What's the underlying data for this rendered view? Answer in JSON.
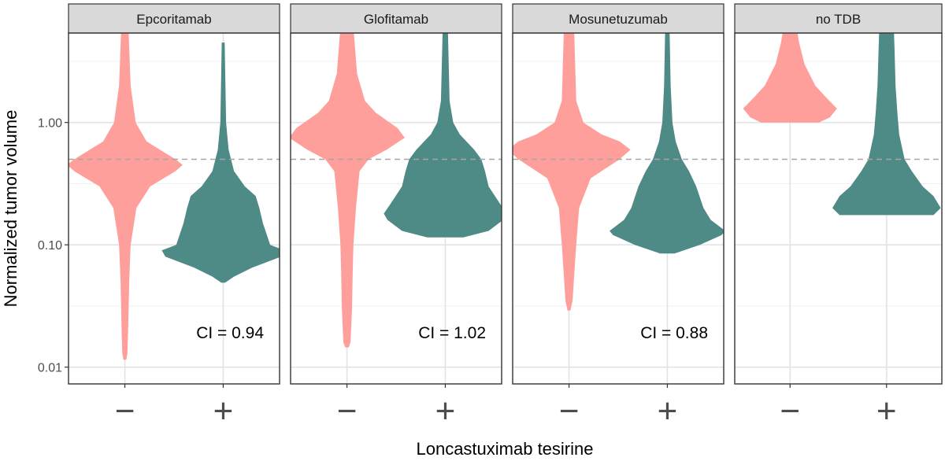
{
  "chart_data": {
    "type": "violin",
    "xlabel": "Loncastuximab tesirine",
    "ylabel": "Normalized tumor volume",
    "y_scale": "log10",
    "ylim": [
      0.0085,
      6.0
    ],
    "y_ticks": [
      {
        "value": 0.01,
        "label": "0.01"
      },
      {
        "value": 0.1,
        "label": "0.10"
      },
      {
        "value": 1.0,
        "label": "1.00"
      }
    ],
    "x_categories": [
      "−",
      "+"
    ],
    "reference_line": {
      "value": 0.5,
      "style": "dashed",
      "color": "#a6a6a6"
    },
    "grid": true,
    "colors": {
      "minus": "#ff9f9b",
      "plus": "#4e8a86",
      "strip": "#d9d9d9"
    },
    "panels": [
      {
        "title": "Epcoritamab",
        "annotation": "CI = 0.94",
        "violins": [
          {
            "group": "−",
            "min": 0.0115,
            "max": 6.0,
            "density": [
              [
                0.0115,
                0.4
              ],
              [
                0.013,
                0.7
              ],
              [
                0.02,
                0.9
              ],
              [
                0.05,
                1.2
              ],
              [
                0.1,
                1.6
              ],
              [
                0.2,
                3.2
              ],
              [
                0.3,
                7
              ],
              [
                0.4,
                14
              ],
              [
                0.45,
                16
              ],
              [
                0.5,
                14
              ],
              [
                0.7,
                6
              ],
              [
                1.0,
                3
              ],
              [
                2.0,
                1.6
              ],
              [
                6.0,
                1.0
              ]
            ]
          },
          {
            "group": "+",
            "min": 0.049,
            "max": 4.5,
            "density": [
              [
                0.049,
                0.5
              ],
              [
                0.055,
                3
              ],
              [
                0.065,
                8
              ],
              [
                0.08,
                16
              ],
              [
                0.09,
                17
              ],
              [
                0.1,
                13
              ],
              [
                0.15,
                11
              ],
              [
                0.2,
                10
              ],
              [
                0.25,
                9
              ],
              [
                0.3,
                6
              ],
              [
                0.4,
                3
              ],
              [
                0.6,
                1.5
              ],
              [
                1.0,
                0.8
              ],
              [
                4.5,
                0.4
              ]
            ]
          }
        ]
      },
      {
        "title": "Glofitamab",
        "annotation": "CI = 1.02",
        "violins": [
          {
            "group": "−",
            "min": 0.0145,
            "max": 6.0,
            "density": [
              [
                0.0145,
                0.5
              ],
              [
                0.016,
                1
              ],
              [
                0.03,
                1.4
              ],
              [
                0.06,
                1.6
              ],
              [
                0.1,
                1.8
              ],
              [
                0.2,
                2.5
              ],
              [
                0.4,
                3.5
              ],
              [
                0.5,
                6
              ],
              [
                0.6,
                11
              ],
              [
                0.75,
                16
              ],
              [
                0.9,
                14
              ],
              [
                1.2,
                8
              ],
              [
                1.5,
                5
              ],
              [
                2.5,
                2.8
              ],
              [
                6.0,
                1.8
              ]
            ]
          },
          {
            "group": "+",
            "min": 0.115,
            "max": 6.0,
            "density": [
              [
                0.115,
                5
              ],
              [
                0.13,
                12
              ],
              [
                0.16,
                16
              ],
              [
                0.18,
                17
              ],
              [
                0.22,
                15
              ],
              [
                0.3,
                12
              ],
              [
                0.4,
                11
              ],
              [
                0.5,
                10
              ],
              [
                0.6,
                8
              ],
              [
                0.8,
                4
              ],
              [
                1.0,
                2.2
              ],
              [
                1.5,
                1.2
              ],
              [
                6.0,
                0.7
              ]
            ]
          }
        ]
      },
      {
        "title": "Mosunetuzumab",
        "annotation": "CI = 0.88",
        "violins": [
          {
            "group": "−",
            "min": 0.029,
            "max": 6.0,
            "density": [
              [
                0.029,
                0.4
              ],
              [
                0.035,
                1
              ],
              [
                0.06,
                1.5
              ],
              [
                0.1,
                2
              ],
              [
                0.2,
                2.8
              ],
              [
                0.35,
                6
              ],
              [
                0.5,
                14
              ],
              [
                0.6,
                17
              ],
              [
                0.7,
                14
              ],
              [
                0.8,
                9
              ],
              [
                1.0,
                4
              ],
              [
                1.5,
                2
              ],
              [
                6.0,
                1.4
              ]
            ]
          },
          {
            "group": "+",
            "min": 0.085,
            "max": 6.0,
            "density": [
              [
                0.085,
                2
              ],
              [
                0.1,
                9
              ],
              [
                0.12,
                15
              ],
              [
                0.13,
                16
              ],
              [
                0.16,
                12
              ],
              [
                0.2,
                10
              ],
              [
                0.3,
                8
              ],
              [
                0.4,
                6
              ],
              [
                0.5,
                4
              ],
              [
                0.7,
                2.3
              ],
              [
                1.0,
                1.4
              ],
              [
                2.0,
                0.9
              ],
              [
                6.0,
                0.6
              ]
            ]
          }
        ]
      },
      {
        "title": "no TDB",
        "annotation": "",
        "violins": [
          {
            "group": "−",
            "min": 1.0,
            "max": 6.0,
            "density": [
              [
                1.0,
                8
              ],
              [
                1.1,
                11
              ],
              [
                1.3,
                13
              ],
              [
                1.6,
                10
              ],
              [
                2.0,
                7
              ],
              [
                3.0,
                4
              ],
              [
                4.5,
                2.5
              ],
              [
                6.0,
                1.8
              ]
            ]
          },
          {
            "group": "+",
            "min": 0.175,
            "max": 6.0,
            "density": [
              [
                0.175,
                13
              ],
              [
                0.2,
                15
              ],
              [
                0.25,
                13
              ],
              [
                0.3,
                10
              ],
              [
                0.4,
                7
              ],
              [
                0.5,
                5
              ],
              [
                0.8,
                3.5
              ],
              [
                1.2,
                3
              ],
              [
                2.0,
                2.5
              ],
              [
                4.0,
                2.2
              ],
              [
                6.0,
                2
              ]
            ]
          }
        ]
      }
    ]
  }
}
